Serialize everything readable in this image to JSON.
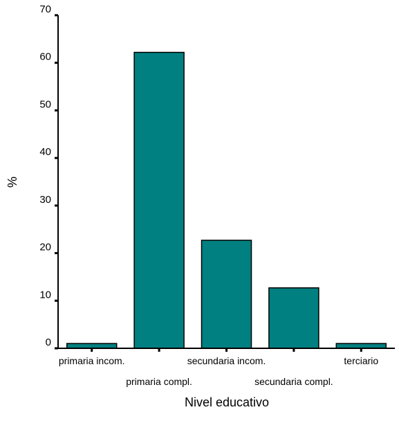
{
  "chart_data": {
    "type": "bar",
    "title": "",
    "xlabel": "Nivel educativo",
    "ylabel": "%",
    "categories": [
      "primaria incom.",
      "primaria compl.",
      "secundaria incom.",
      "secundaria compl.",
      "terciario"
    ],
    "values": [
      1.0,
      62.2,
      22.7,
      12.7,
      1.0
    ],
    "ylim": [
      0,
      70
    ],
    "yticks": [
      "0",
      "10",
      "20",
      "30",
      "40",
      "50",
      "60",
      "70"
    ],
    "grid": false,
    "legend": "none",
    "bar_color": "#008080",
    "bar_edge_color": "#000000"
  }
}
